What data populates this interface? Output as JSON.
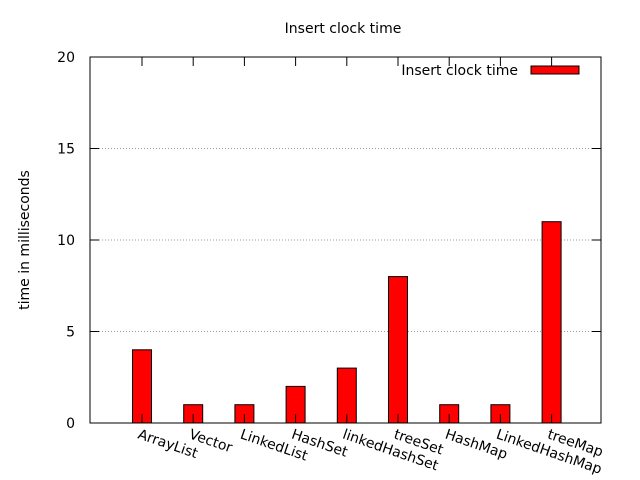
{
  "chart_data": {
    "type": "bar",
    "title": "Insert clock time",
    "xlabel": "",
    "ylabel": "time in milliseconds",
    "ylim": [
      0,
      20
    ],
    "yticks": [
      0,
      5,
      10,
      15,
      20
    ],
    "y_tick_labels": [
      "0",
      "5",
      "10",
      "15",
      "20"
    ],
    "grid": "horizontal dotted",
    "legend_position": "top-right",
    "categories": [
      "ArrayList",
      "Vector",
      "LinkedList",
      "HashSet",
      "linkedHashSet",
      "treeSet",
      "HashMap",
      "LinkedHashMap",
      "treeMap"
    ],
    "series": [
      {
        "name": "Insert clock time",
        "color": "#ff0000",
        "values": [
          4,
          1,
          1,
          2,
          3,
          8,
          1,
          1,
          11
        ]
      }
    ]
  }
}
